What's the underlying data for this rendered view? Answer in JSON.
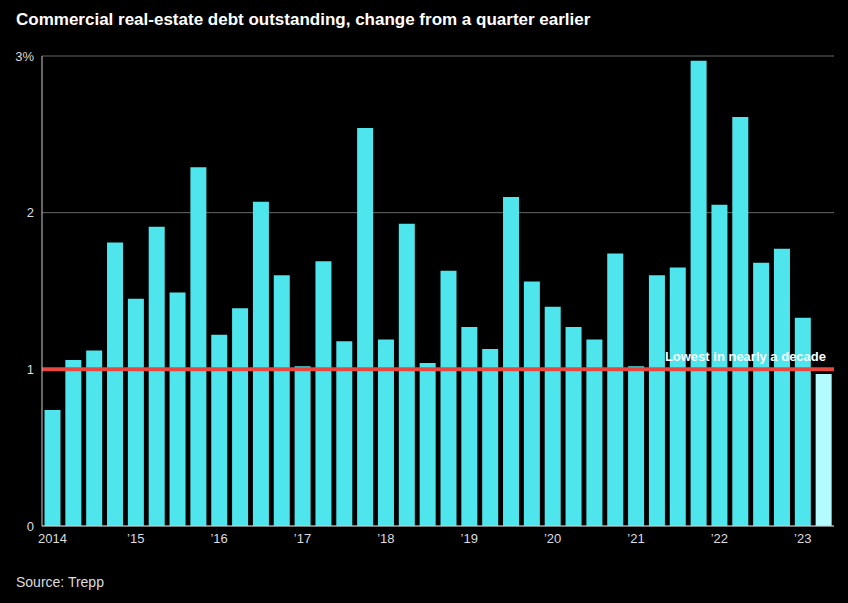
{
  "chart_data": {
    "type": "bar",
    "title": "Commercial real-estate debt outstanding, change from a quarter earlier",
    "source": "Source: Trepp",
    "categories": [
      "2014",
      null,
      null,
      null,
      "’15",
      null,
      null,
      null,
      "’16",
      null,
      null,
      null,
      "’17",
      null,
      null,
      null,
      "’18",
      null,
      null,
      null,
      "’19",
      null,
      null,
      null,
      "’20",
      null,
      null,
      null,
      "’21",
      null,
      null,
      null,
      "’22",
      null,
      null,
      null,
      "’23",
      null
    ],
    "values": [
      0.74,
      1.06,
      1.12,
      1.81,
      1.45,
      1.91,
      1.49,
      2.29,
      1.22,
      1.39,
      2.07,
      1.6,
      1.02,
      1.69,
      1.18,
      2.54,
      1.19,
      1.93,
      1.04,
      1.63,
      1.27,
      1.13,
      2.1,
      1.56,
      1.4,
      1.27,
      1.19,
      1.74,
      1.02,
      1.6,
      1.65,
      2.97,
      2.05,
      2.61,
      1.68,
      1.77,
      1.33,
      0.97
    ],
    "colors": [
      "#4ee6ec",
      "#4ee6ec",
      "#4ee6ec",
      "#4ee6ec",
      "#4ee6ec",
      "#4ee6ec",
      "#4ee6ec",
      "#4ee6ec",
      "#4ee6ec",
      "#4ee6ec",
      "#4ee6ec",
      "#4ee6ec",
      "#4ee6ec",
      "#4ee6ec",
      "#4ee6ec",
      "#4ee6ec",
      "#4ee6ec",
      "#4ee6ec",
      "#4ee6ec",
      "#4ee6ec",
      "#4ee6ec",
      "#4ee6ec",
      "#4ee6ec",
      "#4ee6ec",
      "#4ee6ec",
      "#4ee6ec",
      "#4ee6ec",
      "#4ee6ec",
      "#4ee6ec",
      "#4ee6ec",
      "#4ee6ec",
      "#4ee6ec",
      "#4ee6ec",
      "#4ee6ec",
      "#4ee6ec",
      "#4ee6ec",
      "#4ee6ec",
      "#b4fbff"
    ],
    "ylim": [
      0,
      3
    ],
    "yticks": [
      0,
      1,
      2,
      {
        "value": 3,
        "label": "3%"
      }
    ],
    "grid": true,
    "annotations": [
      {
        "text": "Lowest in nearly a decade",
        "y": 1,
        "color": "#e8473f"
      }
    ]
  }
}
